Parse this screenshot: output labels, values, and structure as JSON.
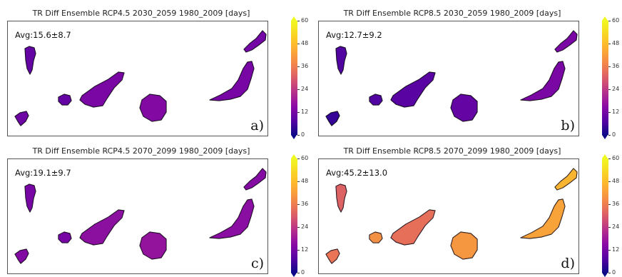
{
  "panels": [
    {
      "title": "TR Diff Ensemble RCP4.5 2030_2059   1980_2009 [days]",
      "avg": "Avg:15.6±8.7",
      "letter": "a)"
    },
    {
      "title": "TR Diff Ensemble RCP8.5 2030_2059   1980_2009 [days]",
      "avg": "Avg:12.7±9.2",
      "letter": "b)"
    },
    {
      "title": "TR Diff Ensemble RCP4.5 2070_2099   1980_2009 [days]",
      "avg": "Avg:19.1±9.7",
      "letter": "c)"
    },
    {
      "title": "TR Diff Ensemble RCP8.5 2070_2099   1980_2009 [days]",
      "avg": "Avg:45.2±13.0",
      "letter": "d)"
    }
  ],
  "colorbar": {
    "ticks": [
      "0",
      "12",
      "24",
      "36",
      "48",
      "60"
    ],
    "colors": [
      "#0d0887",
      "#5302a3",
      "#8b0aa5",
      "#b83289",
      "#db5c68",
      "#f48849",
      "#febd2a",
      "#f0f921"
    ]
  }
}
